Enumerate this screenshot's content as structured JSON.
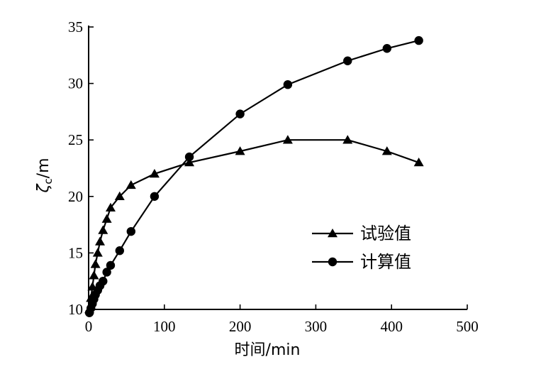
{
  "chart_data": {
    "type": "line",
    "xlabel": "时间/min",
    "ylabel": "ζc/m",
    "ylabel_parts": {
      "main": "ζ",
      "sub": "c",
      "unit": "/m"
    },
    "xlim": [
      0,
      500
    ],
    "ylim": [
      10,
      35
    ],
    "xticks": [
      0,
      100,
      200,
      300,
      400,
      500
    ],
    "yticks": [
      10,
      15,
      20,
      25,
      30,
      35
    ],
    "grid": false,
    "legend_position": "center-right",
    "series": [
      {
        "name": "试验值",
        "marker": "triangle",
        "color": "#000000",
        "x": [
          1,
          3,
          5,
          7,
          9,
          12,
          15,
          19,
          24,
          29,
          41,
          56,
          87,
          133,
          200,
          263,
          342,
          394,
          436
        ],
        "y": [
          10,
          11,
          12,
          13,
          14,
          15,
          16,
          17,
          18,
          19,
          20,
          21,
          22,
          23,
          24,
          25,
          25,
          24,
          23
        ]
      },
      {
        "name": "计算值",
        "marker": "circle",
        "color": "#000000",
        "x": [
          1,
          3,
          5,
          7,
          9,
          12,
          15,
          19,
          24,
          29,
          41,
          56,
          87,
          133,
          200,
          263,
          342,
          394,
          436
        ],
        "y": [
          9.7,
          10.1,
          10.5,
          10.9,
          11.3,
          11.7,
          12.1,
          12.5,
          13.3,
          13.9,
          15.2,
          16.9,
          20.0,
          23.5,
          27.3,
          29.9,
          32.0,
          33.1,
          33.8
        ]
      }
    ]
  }
}
